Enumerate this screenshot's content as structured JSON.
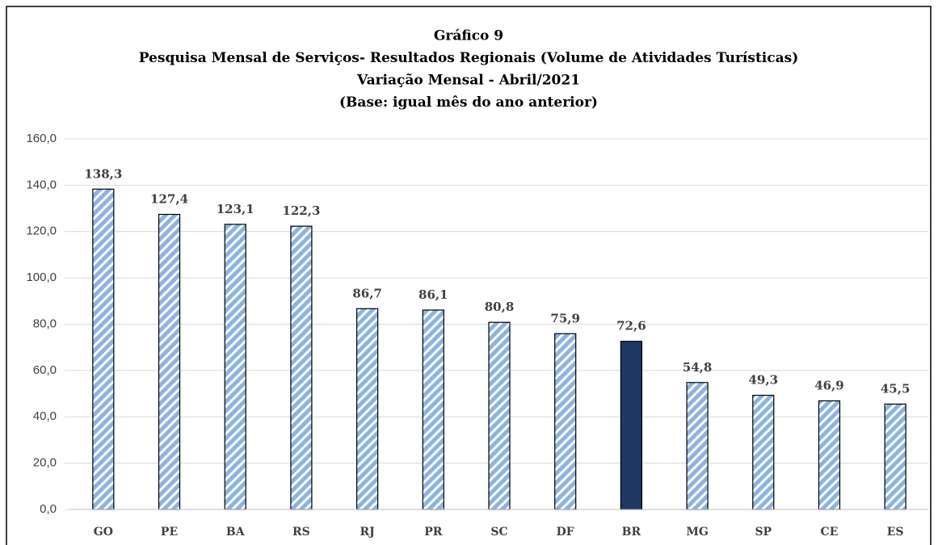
{
  "chart_data": {
    "type": "bar",
    "title": [
      "Gráfico 9",
      "Pesquisa Mensal de Serviços- Resultados Regionais (Volume de Atividades Turísticas)",
      "Variação Mensal - Abril/2021",
      "(Base: igual mês do ano anterior)"
    ],
    "categories": [
      "GO",
      "PE",
      "BA",
      "RS",
      "RJ",
      "PR",
      "SC",
      "DF",
      "BR",
      "MG",
      "SP",
      "CE",
      "ES"
    ],
    "values": [
      138.3,
      127.4,
      123.1,
      122.3,
      86.7,
      86.1,
      80.8,
      75.9,
      72.6,
      54.8,
      49.3,
      46.9,
      45.5
    ],
    "value_labels": [
      "138,3",
      "127,4",
      "123,1",
      "122,3",
      "86,7",
      "86,1",
      "80,8",
      "75,9",
      "72,6",
      "54,8",
      "49,3",
      "46,9",
      "45,5"
    ],
    "colors": [
      "#8db3e2",
      "#8db3e2",
      "#8db3e2",
      "#8db3e2",
      "#8db3e2",
      "#8db3e2",
      "#8db3e2",
      "#8db3e2",
      "#1f3864",
      "#8db3e2",
      "#8db3e2",
      "#8db3e2",
      "#8db3e2"
    ],
    "hatched": [
      true,
      true,
      true,
      true,
      true,
      true,
      true,
      true,
      false,
      true,
      true,
      true,
      true
    ],
    "ylim": [
      0,
      160
    ],
    "yticks": [
      {
        "value": 0,
        "label": "0,0"
      },
      {
        "value": 20,
        "label": "20,0"
      },
      {
        "value": 40,
        "label": "40,0"
      },
      {
        "value": 60,
        "label": "60,0"
      },
      {
        "value": 80,
        "label": "80,0"
      },
      {
        "value": 100,
        "label": "100,0"
      },
      {
        "value": 120,
        "label": "120,0"
      },
      {
        "value": 140,
        "label": "140,0"
      },
      {
        "value": 160,
        "label": "160,0"
      }
    ],
    "grid": true
  }
}
